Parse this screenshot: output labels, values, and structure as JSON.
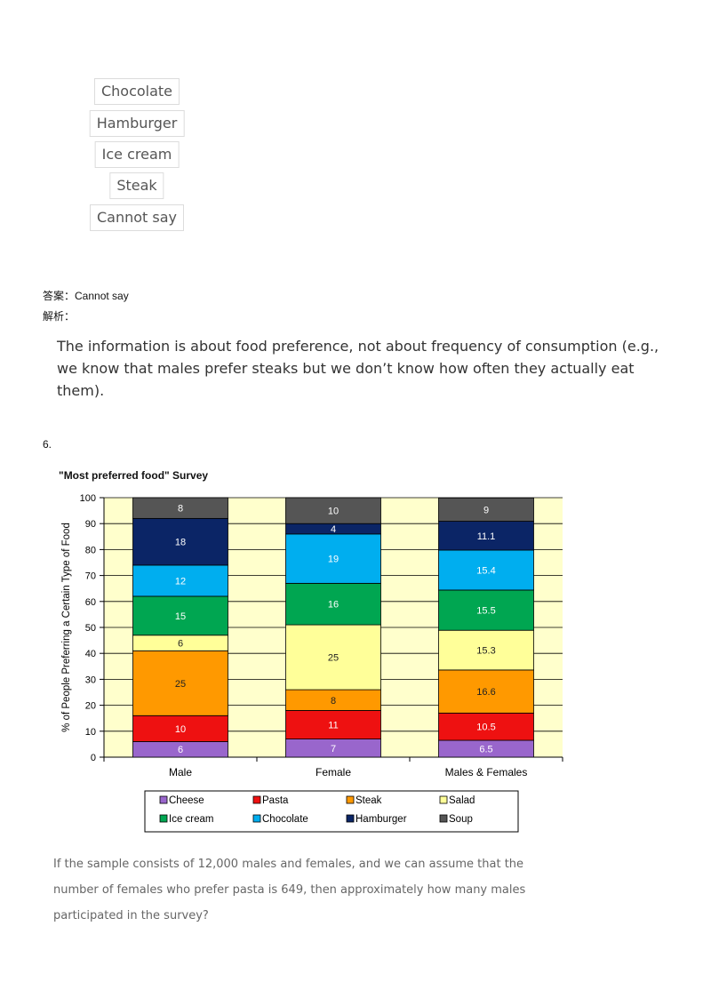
{
  "options": [
    "Chocolate",
    "Hamburger",
    "Ice cream",
    "Steak",
    "Cannot say"
  ],
  "answer_line": "答案：Cannot say",
  "analysis_label": "解析：",
  "explanation": "The information is about food preference, not about frequency of consumption (e.g., we know that males prefer steaks but we don’t know how often they actually eat them).",
  "question_number": "6.",
  "chart_title": "\"Most preferred food\" Survey",
  "question_text": "If the sample consists of 12,000 males and females, and we can assume that the number of females who prefer pasta is 649, then approximately how many males participated in the survey?",
  "chart_data": {
    "type": "bar",
    "stacked": true,
    "title": "\"Most preferred food\" Survey",
    "xlabel": "",
    "ylabel": "% of People Preferring a Certain Type of Food",
    "ylim": [
      0,
      100
    ],
    "yticks": [
      0,
      10,
      20,
      30,
      40,
      50,
      60,
      70,
      80,
      90,
      100
    ],
    "grid": true,
    "legend": "bottom",
    "categories": [
      "Male",
      "Female",
      "Males & Females"
    ],
    "series": [
      {
        "name": "Cheese",
        "color": "#9966cc",
        "values": [
          6,
          7,
          6.5
        ]
      },
      {
        "name": "Pasta",
        "color": "#ee1111",
        "values": [
          10,
          11,
          10.5
        ]
      },
      {
        "name": "Steak",
        "color": "#ff9900",
        "values": [
          25,
          8,
          16.6
        ]
      },
      {
        "name": "Salad",
        "color": "#ffff99",
        "values": [
          6,
          25,
          15.3
        ]
      },
      {
        "name": "Ice cream",
        "color": "#00a651",
        "values": [
          15,
          16,
          15.5
        ]
      },
      {
        "name": "Chocolate",
        "color": "#00aeef",
        "values": [
          12,
          19,
          15.4
        ]
      },
      {
        "name": "Hamburger",
        "color": "#0b2566",
        "values": [
          18,
          4,
          11.1
        ]
      },
      {
        "name": "Soup",
        "color": "#555555",
        "values": [
          8,
          10,
          9
        ]
      }
    ]
  }
}
